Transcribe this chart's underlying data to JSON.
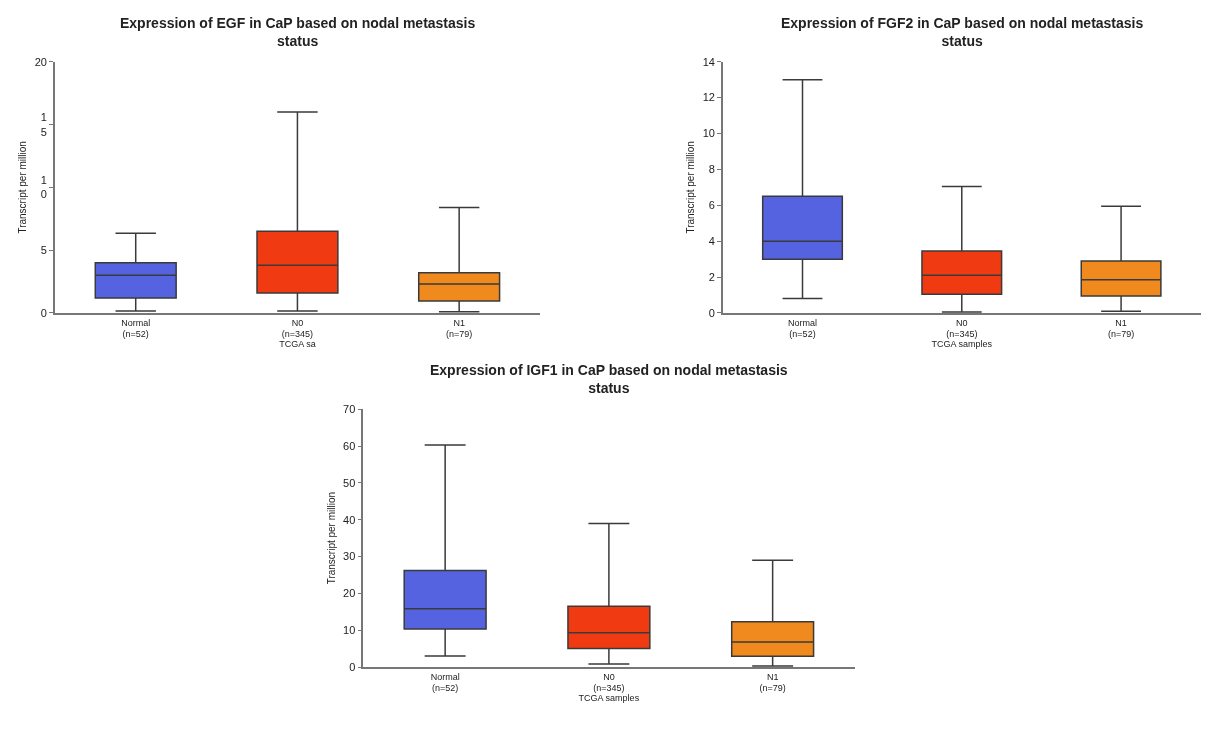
{
  "chart_data": [
    {
      "type": "box",
      "title": "Expression of EGF in CaP based on nodal metastasis\nstatus",
      "xlabel": "TCGA sa",
      "ylabel": "Transcript per million",
      "categories": [
        "Normal\n(n=52)",
        "N0\n(n=345)",
        "N1\n(n=79)"
      ],
      "colors": [
        "#5563e0",
        "#f03a12",
        "#f08a1e"
      ],
      "boxes": [
        {
          "low": 0.15,
          "q1": 1.2,
          "median": 3.0,
          "q3": 4.0,
          "high": 6.35
        },
        {
          "low": 0.15,
          "q1": 1.6,
          "median": 3.8,
          "q3": 6.5,
          "high": 16.0
        },
        {
          "low": 0.1,
          "q1": 0.95,
          "median": 2.3,
          "q3": 3.2,
          "high": 8.4
        }
      ],
      "ylim": [
        0,
        20
      ],
      "yticks": [
        0,
        5,
        {
          "value": 10,
          "label": "1\n0"
        },
        {
          "value": 15,
          "label": "1\n5"
        },
        20
      ]
    },
    {
      "type": "box",
      "title": "Expression of FGF2 in CaP based on nodal metastasis\nstatus",
      "xlabel": "TCGA samples",
      "ylabel": "Transcript per million",
      "categories": [
        "Normal\n(n=52)",
        "N0\n(n=345)",
        "N1\n(n=79)"
      ],
      "colors": [
        "#5563e0",
        "#f03a12",
        "#f08a1e"
      ],
      "boxes": [
        {
          "low": 0.8,
          "q1": 3.0,
          "median": 4.0,
          "q3": 6.5,
          "high": 13.0
        },
        {
          "low": 0.05,
          "q1": 1.05,
          "median": 2.1,
          "q3": 3.45,
          "high": 7.05
        },
        {
          "low": 0.1,
          "q1": 0.95,
          "median": 1.85,
          "q3": 2.9,
          "high": 5.95
        }
      ],
      "ylim": [
        0,
        14
      ],
      "yticks": [
        0,
        2,
        4,
        6,
        8,
        10,
        12,
        14
      ]
    },
    {
      "type": "box",
      "title": "Expression of IGF1 in CaP based on nodal metastasis\nstatus",
      "xlabel": "TCGA samples",
      "ylabel": "Transcript per million",
      "categories": [
        "Normal\n(n=52)",
        "N0\n(n=345)",
        "N1\n(n=79)"
      ],
      "colors": [
        "#5563e0",
        "#f03a12",
        "#f08a1e"
      ],
      "boxes": [
        {
          "low": 3.0,
          "q1": 10.3,
          "median": 15.8,
          "q3": 26.2,
          "high": 60.3
        },
        {
          "low": 0.8,
          "q1": 5.0,
          "median": 9.3,
          "q3": 16.5,
          "high": 39.0
        },
        {
          "low": 0.3,
          "q1": 2.9,
          "median": 6.8,
          "q3": 12.3,
          "high": 29.0
        }
      ],
      "ylim": [
        0,
        70
      ],
      "yticks": [
        0,
        10,
        20,
        30,
        40,
        50,
        60,
        70
      ]
    }
  ]
}
